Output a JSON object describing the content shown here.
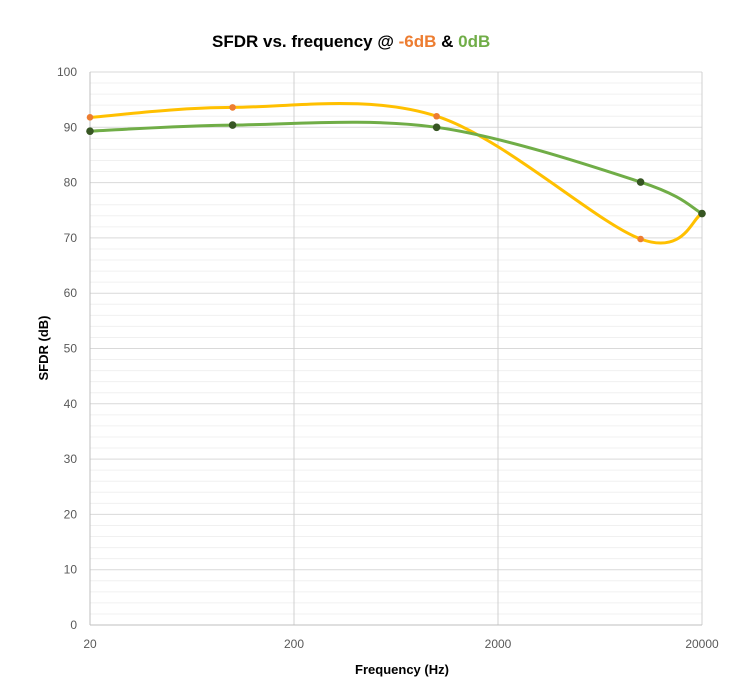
{
  "chart_data": {
    "type": "line",
    "title": {
      "prefix": "SFDR vs. frequency @ ",
      "series_a": "-6dB",
      "joiner": " & ",
      "series_b": "0dB"
    },
    "xlabel": "Frequency (Hz)",
    "ylabel": "SFDR (dB)",
    "x_scale": "log",
    "xlim": [
      20,
      20000
    ],
    "ylim": [
      0,
      100
    ],
    "x_ticks": [
      20,
      200,
      2000,
      20000
    ],
    "x_tick_labels": [
      "20",
      "200",
      "2000",
      "20000"
    ],
    "y_ticks": [
      0,
      10,
      20,
      30,
      40,
      50,
      60,
      70,
      80,
      90,
      100
    ],
    "y_tick_labels": [
      "0",
      "10",
      "20",
      "30",
      "40",
      "50",
      "60",
      "70",
      "80",
      "90",
      "100"
    ],
    "grid": true,
    "legend": "none",
    "series": [
      {
        "x": [
          20,
          100,
          1000,
          10000,
          20000
        ],
        "y": [
          91.8,
          93.6,
          92.0,
          69.8,
          74.4
        ],
        "line_color": "#ffc000",
        "marker_color": "#ed7d31"
      },
      {
        "x": [
          20,
          100,
          1000,
          10000,
          20000
        ],
        "y": [
          89.3,
          90.4,
          90.0,
          80.1,
          74.4
        ],
        "line_color": "#70ad47",
        "marker_color": "#375623"
      }
    ],
    "title_colors": {
      "main": "#000000",
      "series_a": "#ed7d31",
      "series_b": "#70ad47"
    }
  }
}
